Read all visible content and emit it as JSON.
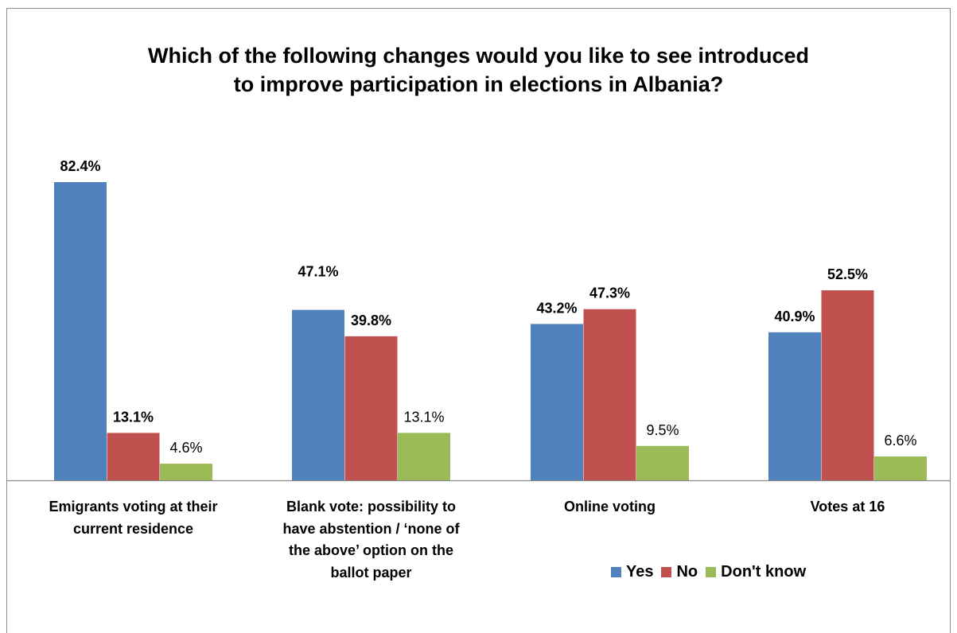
{
  "chart_data": {
    "type": "bar",
    "title_lines": [
      "Which of the following changes would you like to see introduced",
      "to improve participation in elections in Albania?"
    ],
    "categories": [
      "Emigrants voting at their current residence",
      "Blank vote: possibility to have abstention / ‘none of the above’ option on the ballot paper",
      "Online voting",
      "Votes at 16"
    ],
    "category_label_lines": [
      [
        "Emigrants voting at their",
        "current residence"
      ],
      [
        "Blank vote: possibility to",
        "have abstention / ‘none of",
        "the above’ option on the",
        "ballot paper"
      ],
      [
        "Online voting"
      ],
      [
        "Votes at 16"
      ]
    ],
    "series": [
      {
        "name": "Yes",
        "color": "#4f81bd",
        "values": [
          82.4,
          47.1,
          43.2,
          40.9
        ],
        "labels": [
          "82.4%",
          "47.1%",
          "43.2%",
          "40.9%"
        ]
      },
      {
        "name": "No",
        "color": "#c0504d",
        "values": [
          13.1,
          39.8,
          47.3,
          52.5
        ],
        "labels": [
          "13.1%",
          "39.8%",
          "47.3%",
          "52.5%"
        ]
      },
      {
        "name": "Don't know",
        "color": "#9bbb59",
        "values": [
          4.6,
          13.1,
          9.5,
          6.6
        ],
        "labels": [
          "4.6%",
          "13.1%",
          "9.5%",
          "6.6%"
        ]
      }
    ],
    "ylim": [
      0,
      100
    ],
    "xlabel": "",
    "ylabel": "",
    "legend_position": "bottom-right",
    "grid": false
  }
}
